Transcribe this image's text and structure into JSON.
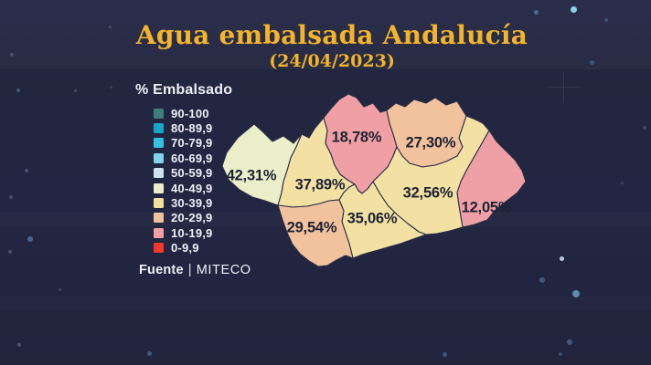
{
  "title": "Agua embalsada Andalucía",
  "date": "(24/04/2023)",
  "legend": {
    "header": "% Embalsado",
    "items": [
      {
        "label": "90-100",
        "color": "#3d7f7e"
      },
      {
        "label": "80-89,9",
        "color": "#16a5c8"
      },
      {
        "label": "70-79,9",
        "color": "#35c0e2"
      },
      {
        "label": "60-69,9",
        "color": "#83d2ec"
      },
      {
        "label": "50-59,9",
        "color": "#cbe2ee"
      },
      {
        "label": "40-49,9",
        "color": "#eaeec9"
      },
      {
        "label": "30-39,9",
        "color": "#f2df9f"
      },
      {
        "label": "20-29,9",
        "color": "#f1c29c"
      },
      {
        "label": "10-19,9",
        "color": "#f0a0a5"
      },
      {
        "label": "0-9,9",
        "color": "#f2382f"
      }
    ]
  },
  "map_data": {
    "type": "choropleth",
    "region": "Andalucía",
    "unit": "% embalsado",
    "provinces": [
      {
        "id": "huelva",
        "value": "42,31%",
        "range": "40-49,9",
        "color": "#eaeec9"
      },
      {
        "id": "sevilla",
        "value": "37,89%",
        "range": "30-39,9",
        "color": "#f2e1a2"
      },
      {
        "id": "cordoba",
        "value": "18,78%",
        "range": "10-19,9",
        "color": "#f0a0a5"
      },
      {
        "id": "jaen",
        "value": "27,30%",
        "range": "20-29,9",
        "color": "#f1c29c"
      },
      {
        "id": "granada",
        "value": "32,56%",
        "range": "30-39,9",
        "color": "#f2e1a2"
      },
      {
        "id": "almeria",
        "value": "12,05%",
        "range": "10-19,9",
        "color": "#efa0a7"
      },
      {
        "id": "cadiz",
        "value": "29,54%",
        "range": "20-29,9",
        "color": "#f1c29c"
      },
      {
        "id": "malaga",
        "value": "35,06%",
        "range": "30-39,9",
        "color": "#f2e1a2"
      }
    ]
  },
  "source": {
    "label": "Fuente",
    "separator": "|",
    "name": "MITECO"
  },
  "colors": {
    "background": "#232642",
    "title": "#f3b32b",
    "text": "#eef0f6",
    "map_label": "#1d2134",
    "border": "#2a2d48"
  }
}
